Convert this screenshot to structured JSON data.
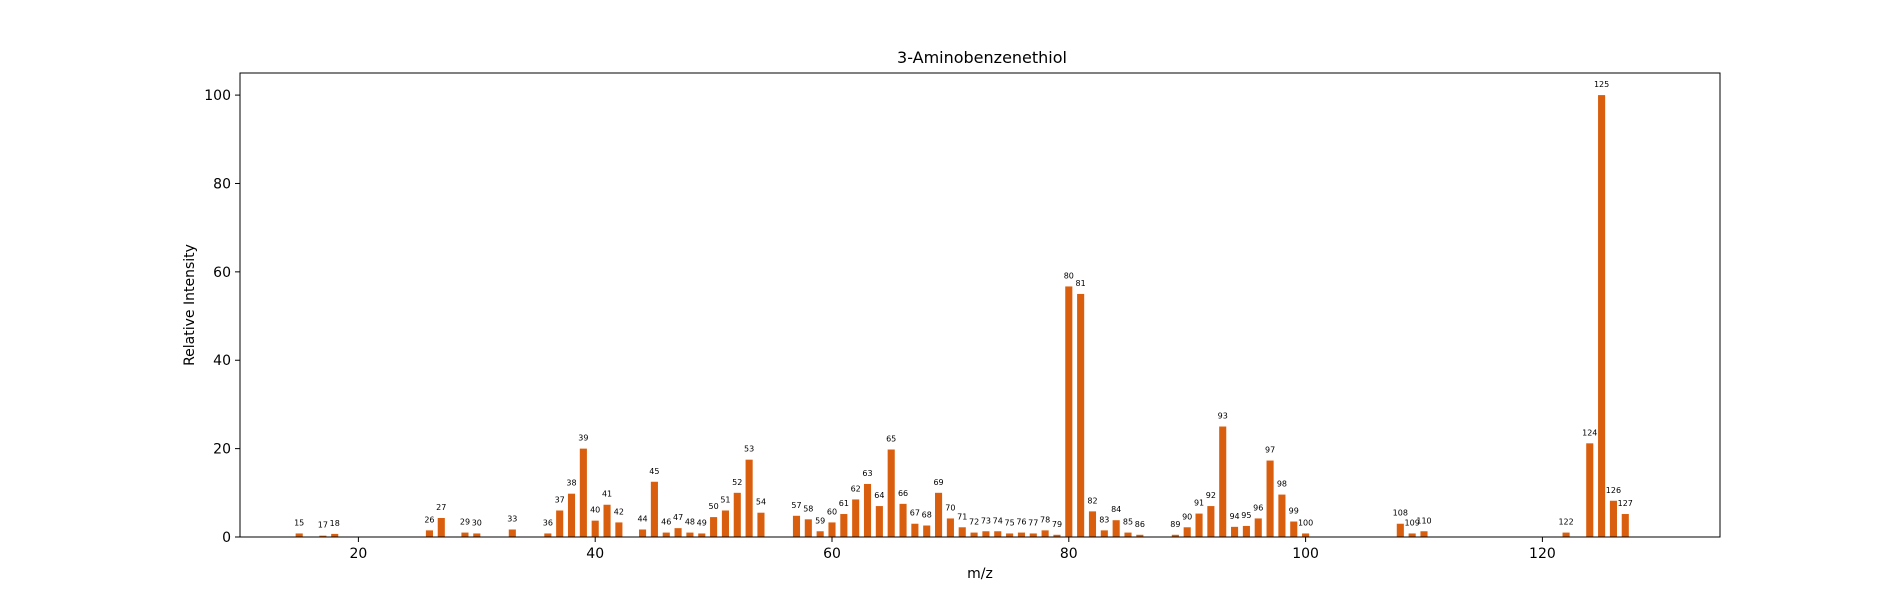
{
  "chart_data": {
    "type": "bar",
    "title": "3-Aminobenzenethiol",
    "xlabel": "m/z",
    "ylabel": "Relative Intensity",
    "xlim": [
      10,
      135
    ],
    "ylim": [
      0,
      105
    ],
    "xticks": [
      20,
      40,
      60,
      80,
      100,
      120
    ],
    "yticks": [
      0,
      20,
      40,
      60,
      80,
      100
    ],
    "bar_color": "#d95f0e",
    "grid": false,
    "points": [
      {
        "x": 15,
        "y": 0.8
      },
      {
        "x": 17,
        "y": 0.3
      },
      {
        "x": 18,
        "y": 0.7
      },
      {
        "x": 26,
        "y": 1.5
      },
      {
        "x": 27,
        "y": 4.3
      },
      {
        "x": 29,
        "y": 1.0
      },
      {
        "x": 30,
        "y": 0.8
      },
      {
        "x": 33,
        "y": 1.7
      },
      {
        "x": 36,
        "y": 0.8
      },
      {
        "x": 37,
        "y": 6.0
      },
      {
        "x": 38,
        "y": 9.8
      },
      {
        "x": 39,
        "y": 20.0
      },
      {
        "x": 40,
        "y": 3.7
      },
      {
        "x": 41,
        "y": 7.3
      },
      {
        "x": 42,
        "y": 3.3
      },
      {
        "x": 44,
        "y": 1.7
      },
      {
        "x": 45,
        "y": 12.5
      },
      {
        "x": 46,
        "y": 1.0
      },
      {
        "x": 47,
        "y": 2.0
      },
      {
        "x": 48,
        "y": 1.0
      },
      {
        "x": 49,
        "y": 0.8
      },
      {
        "x": 50,
        "y": 4.5
      },
      {
        "x": 51,
        "y": 6.0
      },
      {
        "x": 52,
        "y": 10.0
      },
      {
        "x": 53,
        "y": 17.5
      },
      {
        "x": 54,
        "y": 5.5
      },
      {
        "x": 57,
        "y": 4.8
      },
      {
        "x": 58,
        "y": 4.0
      },
      {
        "x": 59,
        "y": 1.3
      },
      {
        "x": 60,
        "y": 3.3
      },
      {
        "x": 61,
        "y": 5.2
      },
      {
        "x": 62,
        "y": 8.5
      },
      {
        "x": 63,
        "y": 12.0
      },
      {
        "x": 64,
        "y": 7.0
      },
      {
        "x": 65,
        "y": 19.8
      },
      {
        "x": 66,
        "y": 7.5
      },
      {
        "x": 67,
        "y": 3.0
      },
      {
        "x": 68,
        "y": 2.6
      },
      {
        "x": 69,
        "y": 10.0
      },
      {
        "x": 70,
        "y": 4.2
      },
      {
        "x": 71,
        "y": 2.2
      },
      {
        "x": 72,
        "y": 1.0
      },
      {
        "x": 73,
        "y": 1.3
      },
      {
        "x": 74,
        "y": 1.3
      },
      {
        "x": 75,
        "y": 0.8
      },
      {
        "x": 76,
        "y": 1.0
      },
      {
        "x": 77,
        "y": 0.8
      },
      {
        "x": 78,
        "y": 1.5
      },
      {
        "x": 79,
        "y": 0.5
      },
      {
        "x": 80,
        "y": 56.7
      },
      {
        "x": 81,
        "y": 55.0
      },
      {
        "x": 82,
        "y": 5.8
      },
      {
        "x": 83,
        "y": 1.5
      },
      {
        "x": 84,
        "y": 3.8
      },
      {
        "x": 85,
        "y": 1.0
      },
      {
        "x": 86,
        "y": 0.5
      },
      {
        "x": 89,
        "y": 0.5
      },
      {
        "x": 90,
        "y": 2.2
      },
      {
        "x": 91,
        "y": 5.3
      },
      {
        "x": 92,
        "y": 7.0
      },
      {
        "x": 93,
        "y": 25.0
      },
      {
        "x": 94,
        "y": 2.3
      },
      {
        "x": 95,
        "y": 2.5
      },
      {
        "x": 96,
        "y": 4.2
      },
      {
        "x": 97,
        "y": 17.3
      },
      {
        "x": 98,
        "y": 9.6
      },
      {
        "x": 99,
        "y": 3.5
      },
      {
        "x": 100,
        "y": 0.8
      },
      {
        "x": 108,
        "y": 3.0
      },
      {
        "x": 109,
        "y": 0.8
      },
      {
        "x": 110,
        "y": 1.3
      },
      {
        "x": 122,
        "y": 1.0
      },
      {
        "x": 124,
        "y": 21.2
      },
      {
        "x": 125,
        "y": 100.0
      },
      {
        "x": 126,
        "y": 8.2
      },
      {
        "x": 127,
        "y": 5.2
      }
    ]
  }
}
